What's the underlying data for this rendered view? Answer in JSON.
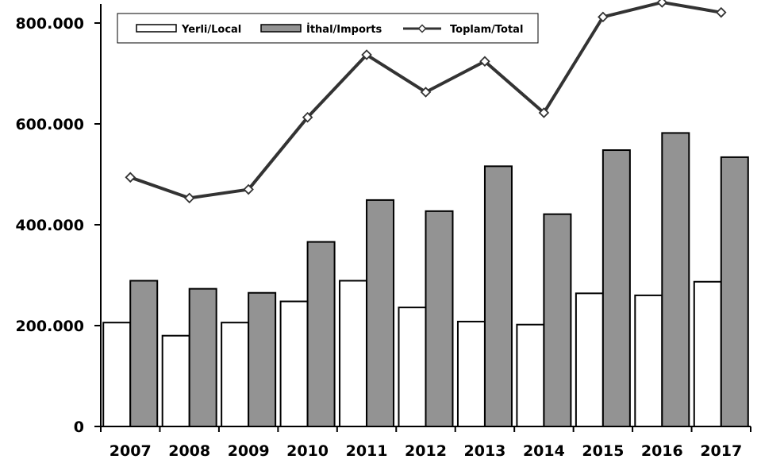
{
  "chart_data": {
    "type": "bar",
    "categories": [
      "2007",
      "2008",
      "2009",
      "2010",
      "2011",
      "2012",
      "2013",
      "2014",
      "2015",
      "2016",
      "2017"
    ],
    "series": [
      {
        "name": "Yerli/Local",
        "type": "bar",
        "color": "#ffffff",
        "values": [
          206000,
          180000,
          206000,
          248000,
          289000,
          236000,
          208000,
          202000,
          264000,
          260000,
          287000
        ]
      },
      {
        "name": "İthal/Imports",
        "type": "bar",
        "color": "#939393",
        "values": [
          289000,
          273000,
          265000,
          366000,
          449000,
          427000,
          516000,
          421000,
          548000,
          582000,
          534000
        ]
      },
      {
        "name": "Toplam/Total",
        "type": "line",
        "color": "#333333",
        "values": [
          494000,
          453000,
          470000,
          613000,
          737000,
          663000,
          724000,
          622000,
          812000,
          841000,
          821000
        ]
      }
    ],
    "y_ticks": [
      0,
      200000,
      400000,
      600000,
      800000
    ],
    "y_tick_labels": [
      "0",
      "200.000",
      "400.000",
      "600.000",
      "800.000"
    ],
    "ylim": [
      0,
      800000
    ],
    "grid": false,
    "legend_position": "top-left",
    "title": "",
    "xlabel": "",
    "ylabel": ""
  }
}
